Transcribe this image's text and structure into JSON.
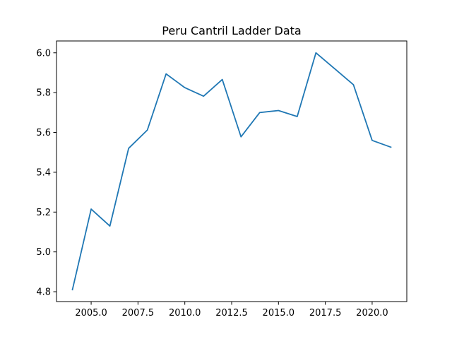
{
  "chart_data": {
    "type": "line",
    "title": "Peru Cantril Ladder Data",
    "xlabel": "",
    "ylabel": "",
    "xlim": [
      2003.15,
      2021.85
    ],
    "ylim": [
      4.7505,
      6.0595
    ],
    "x_ticks": [
      2005.0,
      2007.5,
      2010.0,
      2012.5,
      2015.0,
      2017.5,
      2020.0
    ],
    "x_tick_labels": [
      "2005.0",
      "2007.5",
      "2010.0",
      "2012.5",
      "2015.0",
      "2017.5",
      "2020.0"
    ],
    "y_ticks": [
      4.8,
      5.0,
      5.2,
      5.4,
      5.6,
      5.8,
      6.0
    ],
    "y_tick_labels": [
      "4.8",
      "5.0",
      "5.2",
      "5.4",
      "5.6",
      "5.8",
      "6.0"
    ],
    "grid": false,
    "legend": "none",
    "series": [
      {
        "color": "#1f77b4",
        "x": [
          2004,
          2005,
          2006,
          2007,
          2008,
          2009,
          2010,
          2011,
          2012,
          2013,
          2014,
          2015,
          2016,
          2017,
          2018,
          2019,
          2020,
          2021
        ],
        "y": [
          4.81,
          5.215,
          5.13,
          5.52,
          5.612,
          5.894,
          5.825,
          5.782,
          5.866,
          5.578,
          5.7,
          5.71,
          5.68,
          6.0,
          5.92,
          5.84,
          5.56,
          5.526
        ]
      }
    ]
  }
}
